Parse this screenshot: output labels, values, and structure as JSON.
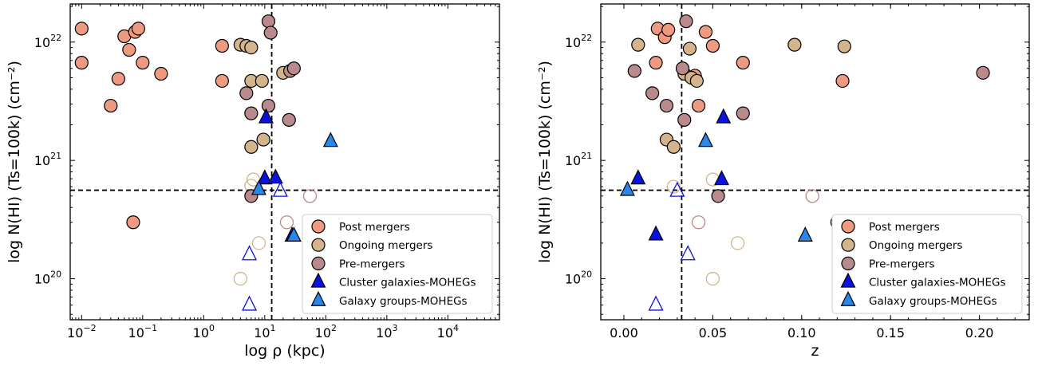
{
  "colors": {
    "post": "#EE9A80",
    "ongoing": "#D4B48C",
    "pre": "#B88A8C",
    "cluster": "#0A12E0",
    "groups": "#2A86E8"
  },
  "legend": {
    "post": "Post mergers",
    "ongoing": "Ongoing mergers",
    "pre": "Pre-mergers",
    "cluster": "Cluster galaxies-MOHEGs",
    "groups": "Galaxy groups-MOHEGs"
  },
  "chart_data": [
    {
      "type": "scatter",
      "xlabel": "log ρ (kpc)",
      "ylabel": "log N(HI) (Ts=100k) (cm⁻²)",
      "xscale": "log",
      "yscale": "log",
      "xlim": [
        0.0065,
        70000
      ],
      "ylim": [
        4.5e+19,
        2.1e+22
      ],
      "xticks": [
        {
          "v": 0.01,
          "b": "10",
          "e": "−2"
        },
        {
          "v": 0.1,
          "b": "10",
          "e": "−1"
        },
        {
          "v": 1,
          "b": "10",
          "e": "0"
        },
        {
          "v": 10,
          "b": "10",
          "e": "1"
        },
        {
          "v": 100,
          "b": "10",
          "e": "2"
        },
        {
          "v": 1000,
          "b": "10",
          "e": "3"
        },
        {
          "v": 10000,
          "b": "10",
          "e": "4"
        }
      ],
      "yticks": [
        {
          "v": 1e+20,
          "b": "10",
          "e": "20"
        },
        {
          "v": 1e+21,
          "b": "10",
          "e": "21"
        },
        {
          "v": 1e+22,
          "b": "10",
          "e": "22"
        }
      ],
      "hline": 5.6e+20,
      "vline": 13,
      "legend_position": "lower right",
      "series": [
        {
          "key": "post",
          "marker": "circle",
          "filled": true,
          "points": [
            [
              0.01,
              1.3e+22
            ],
            [
              0.01,
              6.7e+21
            ],
            [
              0.03,
              2.9e+21
            ],
            [
              0.04,
              4.9e+21
            ],
            [
              0.05,
              1.12e+22
            ],
            [
              0.06,
              8.6e+21
            ],
            [
              0.075,
              1.22e+22
            ],
            [
              0.085,
              1.3e+22
            ],
            [
              0.1,
              6.7e+21
            ],
            [
              0.2,
              5.4e+21
            ],
            [
              0.07,
              3e+20
            ],
            [
              2.0,
              9.3e+21
            ],
            [
              2.0,
              4.7e+21
            ]
          ]
        },
        {
          "key": "ongoing",
          "marker": "circle",
          "filled": true,
          "points": [
            [
              4.0,
              9.5e+21
            ],
            [
              5.0,
              9.3e+21
            ],
            [
              6.0,
              9e+21
            ],
            [
              6.0,
              4.7e+21
            ],
            [
              9.0,
              4.7e+21
            ],
            [
              20.0,
              5.5e+21
            ],
            [
              6.0,
              1.3e+21
            ],
            [
              9.5,
              1.5e+21
            ]
          ]
        },
        {
          "key": "ongoing",
          "marker": "circle",
          "filled": false,
          "points": [
            [
              6.5,
              6.9e+20
            ],
            [
              6.0,
              6.1e+20
            ],
            [
              8.0,
              2e+20
            ],
            [
              4.0,
              1e+20
            ]
          ]
        },
        {
          "key": "pre",
          "marker": "circle",
          "filled": true,
          "points": [
            [
              11.5,
              1.5e+22
            ],
            [
              12.5,
              1.2e+22
            ],
            [
              5.0,
              3.7e+21
            ],
            [
              6.0,
              2.5e+21
            ],
            [
              11.5,
              2.9e+21
            ],
            [
              26.0,
              5.7e+21
            ],
            [
              30.0,
              6e+21
            ],
            [
              25.0,
              2.2e+21
            ],
            [
              6.0,
              5e+20
            ]
          ]
        },
        {
          "key": "pre",
          "marker": "circle",
          "filled": false,
          "points": [
            [
              23.0,
              3e+20
            ],
            [
              55.0,
              5e+20
            ]
          ]
        },
        {
          "key": "cluster",
          "marker": "triangle",
          "filled": true,
          "points": [
            [
              10.5,
              2.3e+21
            ],
            [
              10.0,
              7e+20
            ],
            [
              15.0,
              7.1e+20
            ],
            [
              28.0,
              2.3e+20
            ]
          ]
        },
        {
          "key": "cluster",
          "marker": "triangle",
          "filled": false,
          "points": [
            [
              18.0,
              5.5e+20
            ],
            [
              5.6,
              1.6e+20
            ],
            [
              5.6,
              6e+19
            ]
          ]
        },
        {
          "key": "groups",
          "marker": "triangle",
          "filled": true,
          "points": [
            [
              120.0,
              1.45e+21
            ],
            [
              8.0,
              5.7e+20
            ],
            [
              30.0,
              2.3e+20
            ]
          ]
        }
      ]
    },
    {
      "type": "scatter",
      "xlabel": "z",
      "ylabel": "log N(HI) (Ts=100k) (cm⁻²)",
      "xscale": "linear",
      "yscale": "log",
      "xlim": [
        -0.013,
        0.228
      ],
      "ylim": [
        4.5e+19,
        2.1e+22
      ],
      "xticks": [
        {
          "v": 0.0,
          "t": "0.00"
        },
        {
          "v": 0.05,
          "t": "0.05"
        },
        {
          "v": 0.1,
          "t": "0.10"
        },
        {
          "v": 0.15,
          "t": "0.15"
        },
        {
          "v": 0.2,
          "t": "0.20"
        }
      ],
      "yticks": [
        {
          "v": 1e+20,
          "b": "10",
          "e": "20"
        },
        {
          "v": 1e+21,
          "b": "10",
          "e": "21"
        },
        {
          "v": 1e+22,
          "b": "10",
          "e": "22"
        }
      ],
      "hline": 5.6e+20,
      "vline": 0.0325,
      "legend_position": "lower right",
      "series": [
        {
          "key": "post",
          "marker": "circle",
          "filled": true,
          "points": [
            [
              0.019,
              1.3e+22
            ],
            [
              0.023,
              1.1e+22
            ],
            [
              0.025,
              1.27e+22
            ],
            [
              0.018,
              6.7e+21
            ],
            [
              0.04,
              5.2e+21
            ],
            [
              0.042,
              2.9e+21
            ],
            [
              0.046,
              1.22e+22
            ],
            [
              0.05,
              9.3e+21
            ],
            [
              0.067,
              6.7e+21
            ],
            [
              0.123,
              4.7e+21
            ],
            [
              0.12,
              3e+20
            ]
          ]
        },
        {
          "key": "ongoing",
          "marker": "circle",
          "filled": true,
          "points": [
            [
              0.008,
              9.5e+21
            ],
            [
              0.037,
              8.8e+21
            ],
            [
              0.034,
              5.4e+21
            ],
            [
              0.038,
              5e+21
            ],
            [
              0.041,
              4.7e+21
            ],
            [
              0.096,
              9.5e+21
            ],
            [
              0.124,
              9.2e+21
            ],
            [
              0.024,
              1.5e+21
            ],
            [
              0.028,
              1.3e+21
            ]
          ]
        },
        {
          "key": "ongoing",
          "marker": "circle",
          "filled": false,
          "points": [
            [
              0.05,
              6.9e+20
            ],
            [
              0.028,
              6e+20
            ],
            [
              0.064,
              2e+20
            ],
            [
              0.05,
              1e+20
            ]
          ]
        },
        {
          "key": "pre",
          "marker": "circle",
          "filled": true,
          "points": [
            [
              0.035,
              1.5e+22
            ],
            [
              0.006,
              5.7e+21
            ],
            [
              0.016,
              3.7e+21
            ],
            [
              0.024,
              2.9e+21
            ],
            [
              0.033,
              6e+21
            ],
            [
              0.034,
              2.2e+21
            ],
            [
              0.067,
              2.5e+21
            ],
            [
              0.202,
              5.5e+21
            ],
            [
              0.053,
              5e+20
            ]
          ]
        },
        {
          "key": "pre",
          "marker": "circle",
          "filled": false,
          "points": [
            [
              0.042,
              3e+20
            ],
            [
              0.106,
              5e+20
            ]
          ]
        },
        {
          "key": "cluster",
          "marker": "triangle",
          "filled": true,
          "points": [
            [
              0.056,
              2.3e+21
            ],
            [
              0.055,
              6.9e+20
            ],
            [
              0.008,
              7e+20
            ],
            [
              0.018,
              2.35e+20
            ]
          ]
        },
        {
          "key": "cluster",
          "marker": "triangle",
          "filled": false,
          "points": [
            [
              0.03,
              5.5e+20
            ],
            [
              0.036,
              1.6e+20
            ],
            [
              0.018,
              6e+19
            ]
          ]
        },
        {
          "key": "groups",
          "marker": "triangle",
          "filled": true,
          "points": [
            [
              0.046,
              1.45e+21
            ],
            [
              0.002,
              5.6e+20
            ],
            [
              0.102,
              2.3e+20
            ]
          ]
        }
      ]
    }
  ]
}
